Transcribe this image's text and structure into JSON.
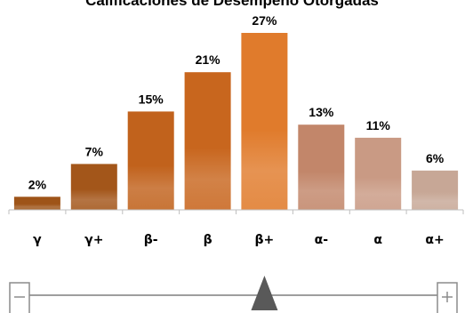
{
  "chart_data": {
    "type": "bar",
    "title": "Calificaciones de Desempeño Otorgadas",
    "categories": [
      "γ",
      "γ+",
      "β-",
      "β",
      "β+",
      "α-",
      "α",
      "α+"
    ],
    "values": [
      2,
      7,
      15,
      21,
      27,
      13,
      11,
      6
    ],
    "value_labels": [
      "2%",
      "7%",
      "15%",
      "21%",
      "27%",
      "13%",
      "11%",
      "6%"
    ],
    "xlabel": "",
    "ylabel": "",
    "ylim": [
      0,
      27
    ],
    "grid": false,
    "legend": "none",
    "colors": [
      "#9e5418",
      "#a3561a",
      "#c1621c",
      "#c8661e",
      "#e07b2c",
      "#c2866a",
      "#c99a84",
      "#c7a796"
    ]
  },
  "slider": {
    "level_category": "β+",
    "colors": {
      "track": "#7f7f7f",
      "thumb": "#595959",
      "box": "#8c8c8c"
    }
  }
}
